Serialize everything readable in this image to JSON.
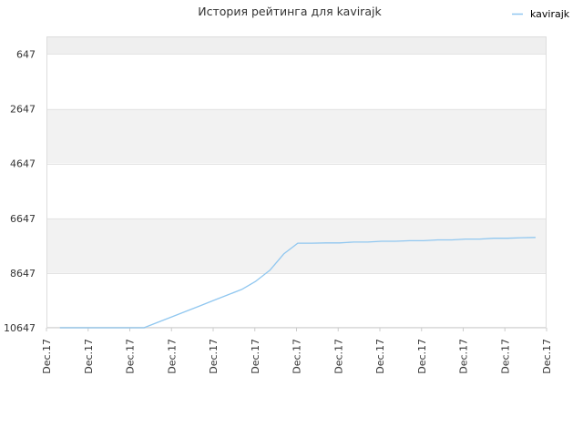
{
  "chart_data": {
    "type": "line",
    "title": "История рейтинга для kavirajk",
    "xlabel": "",
    "ylabel": "",
    "y_inverted": true,
    "ylim": [
      10647,
      0
    ],
    "yticks": [
      647,
      2647,
      4647,
      6647,
      8647,
      10647
    ],
    "ytick_labels": [
      "647",
      "2647",
      "4647",
      "6647",
      "8647",
      "10647"
    ],
    "xtick_labels": [
      "Dec.17",
      "Dec.17",
      "Dec.17",
      "Dec.17",
      "Dec.17",
      "Dec.17",
      "Dec.17",
      "Dec.17",
      "Dec.17",
      "Dec.17",
      "Dec.17",
      "Dec.17",
      "Dec.17"
    ],
    "grid": true,
    "band_colors": [
      "#efefef",
      "#ffffff",
      "#f2f2f2",
      "#ffffff",
      "#f2f2f2",
      "#ffffff"
    ],
    "legend_position": "top-right",
    "series": [
      {
        "name": "kavirajk",
        "color": "#90c7f0",
        "values": [
          10647,
          10647,
          10647,
          10647,
          10647,
          10647,
          10647,
          10447,
          10247,
          10047,
          9847,
          9647,
          9447,
          9247,
          8947,
          8547,
          7947,
          7557,
          7557,
          7547,
          7547,
          7517,
          7517,
          7487,
          7487,
          7467,
          7467,
          7437,
          7437,
          7407,
          7407,
          7377,
          7377,
          7357,
          7347
        ]
      }
    ]
  }
}
